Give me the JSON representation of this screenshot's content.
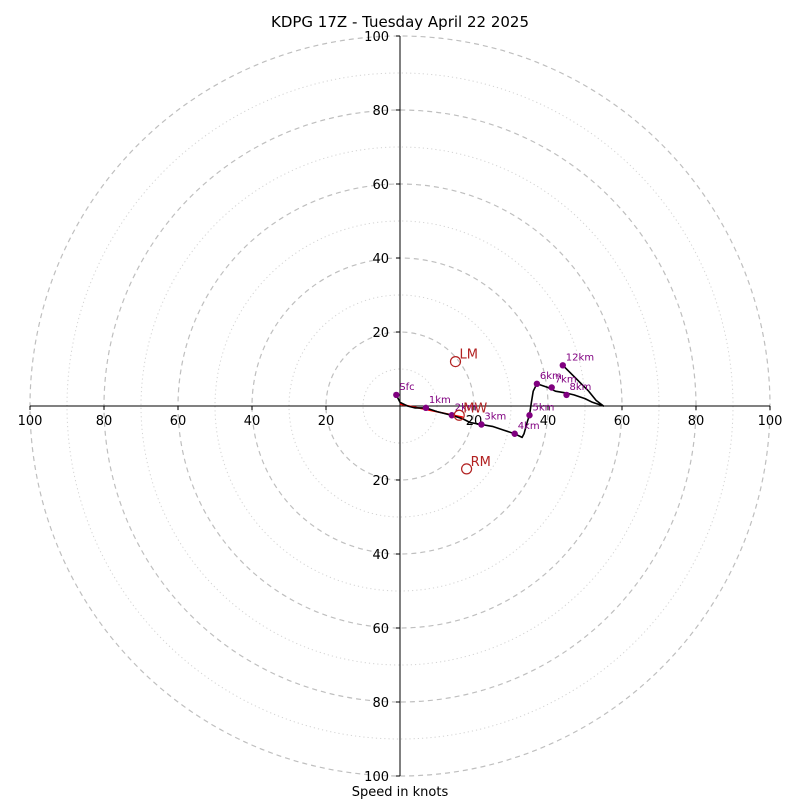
{
  "chart_data": {
    "type": "scatter",
    "title": "KDPG 17Z - Tuesday April 22 2025",
    "xlabel": "Speed in knots",
    "ylabel": "",
    "xlim": [
      -100,
      100
    ],
    "ylim": [
      -100,
      100
    ],
    "grid": true,
    "ring_labels": [
      20,
      40,
      60,
      80,
      100
    ],
    "x_tick_labels": [
      "100",
      "80",
      "60",
      "40",
      "20",
      "20",
      "40",
      "60",
      "80",
      "100"
    ],
    "y_tick_labels": [
      "100",
      "80",
      "60",
      "40",
      "20",
      "20",
      "40",
      "60",
      "80",
      "100"
    ],
    "hodograph": {
      "trace": [
        [
          -1,
          3
        ],
        [
          0,
          1
        ],
        [
          2,
          0
        ],
        [
          4,
          -0.5
        ],
        [
          7,
          -0.5
        ],
        [
          10,
          -1.5
        ],
        [
          14,
          -2.5
        ],
        [
          17,
          -3.5
        ],
        [
          19,
          -4.5
        ],
        [
          22,
          -5
        ],
        [
          25,
          -5.5
        ],
        [
          28,
          -6.5
        ],
        [
          31,
          -7.5
        ],
        [
          33,
          -8.5
        ],
        [
          33.5,
          -7.5
        ],
        [
          34.5,
          -4
        ],
        [
          35,
          -2.5
        ],
        [
          35.5,
          1
        ],
        [
          36,
          4
        ],
        [
          37,
          6
        ],
        [
          40,
          5
        ],
        [
          42,
          4
        ],
        [
          45,
          3.5
        ],
        [
          47,
          3
        ],
        [
          50,
          2
        ],
        [
          52,
          1
        ],
        [
          55,
          0
        ],
        [
          53,
          1.5
        ],
        [
          51,
          4
        ],
        [
          48,
          7
        ],
        [
          46,
          9
        ],
        [
          44,
          11
        ]
      ],
      "points": [
        {
          "label": "Sfc",
          "x": -1,
          "y": 3
        },
        {
          "label": "1km",
          "x": 7,
          "y": -0.5
        },
        {
          "label": "2km",
          "x": 14,
          "y": -2.5
        },
        {
          "label": "3km",
          "x": 22,
          "y": -5
        },
        {
          "label": "4km",
          "x": 31,
          "y": -7.5
        },
        {
          "label": "5km",
          "x": 35,
          "y": -2.5
        },
        {
          "label": "6km",
          "x": 37,
          "y": 6
        },
        {
          "label": "7km",
          "x": 41,
          "y": 5
        },
        {
          "label": "8km",
          "x": 45,
          "y": 3
        },
        {
          "label": "12km",
          "x": 44,
          "y": 11
        }
      ],
      "shear_line": [
        [
          0,
          0.5
        ],
        [
          17,
          -3
        ]
      ]
    },
    "motions": [
      {
        "label": "LM",
        "x": 15,
        "y": 12
      },
      {
        "label": "MW",
        "x": 16,
        "y": -2.5
      },
      {
        "label": "RM",
        "x": 18,
        "y": -17
      }
    ],
    "colors": {
      "trace": "#000000",
      "points": "#800080",
      "labels": "#800080",
      "motion": "#b22222",
      "shear": "#ff0000",
      "grid": "#bfbfbf"
    }
  }
}
